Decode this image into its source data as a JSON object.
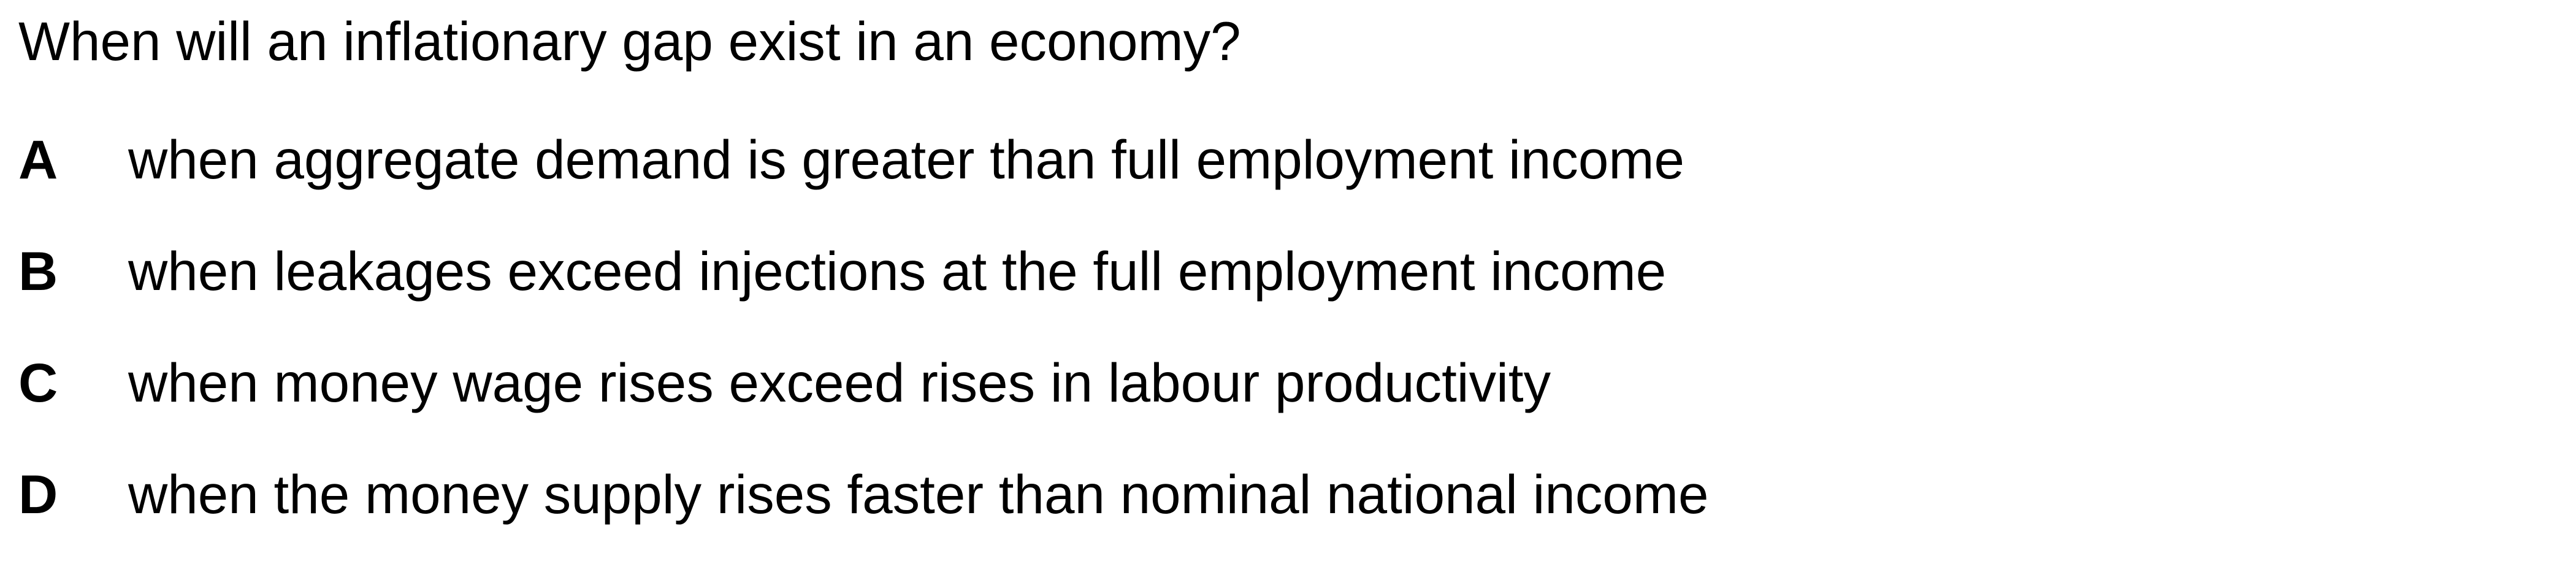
{
  "question": {
    "text": "When will an inflationary gap exist in an economy?"
  },
  "options": [
    {
      "letter": "A",
      "text": "when aggregate demand is greater than full employment income"
    },
    {
      "letter": "B",
      "text": "when leakages exceed injections at the full employment income"
    },
    {
      "letter": "C",
      "text": "when money wage rises exceed rises in labour productivity"
    },
    {
      "letter": "D",
      "text": "when the money supply rises faster than nominal national income"
    }
  ]
}
